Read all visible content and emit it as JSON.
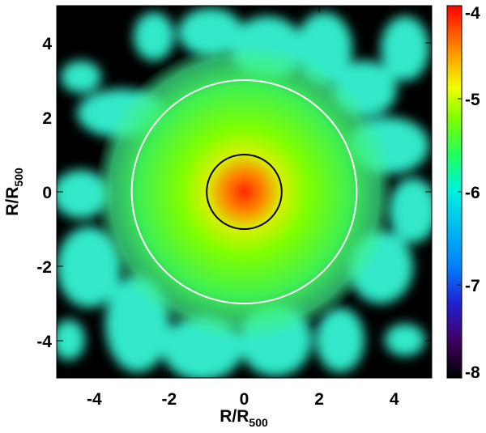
{
  "chart_data": {
    "type": "heatmap",
    "xlabel": "R/R",
    "xlabel_subscript": "500",
    "ylabel": "R/R",
    "ylabel_subscript": "500",
    "xlim": [
      -5,
      5
    ],
    "ylim": [
      -5,
      5
    ],
    "xticks": [
      -4,
      -2,
      0,
      2,
      4
    ],
    "yticks": [
      -4,
      -2,
      0,
      2,
      4
    ],
    "circles": [
      {
        "r": 3,
        "color": "#ffffff"
      },
      {
        "r": 1,
        "color": "#000000"
      }
    ],
    "colorbar": {
      "lim": [
        -8,
        -4
      ],
      "ticks": [
        -8,
        -7,
        -6,
        -5,
        -4
      ]
    }
  }
}
